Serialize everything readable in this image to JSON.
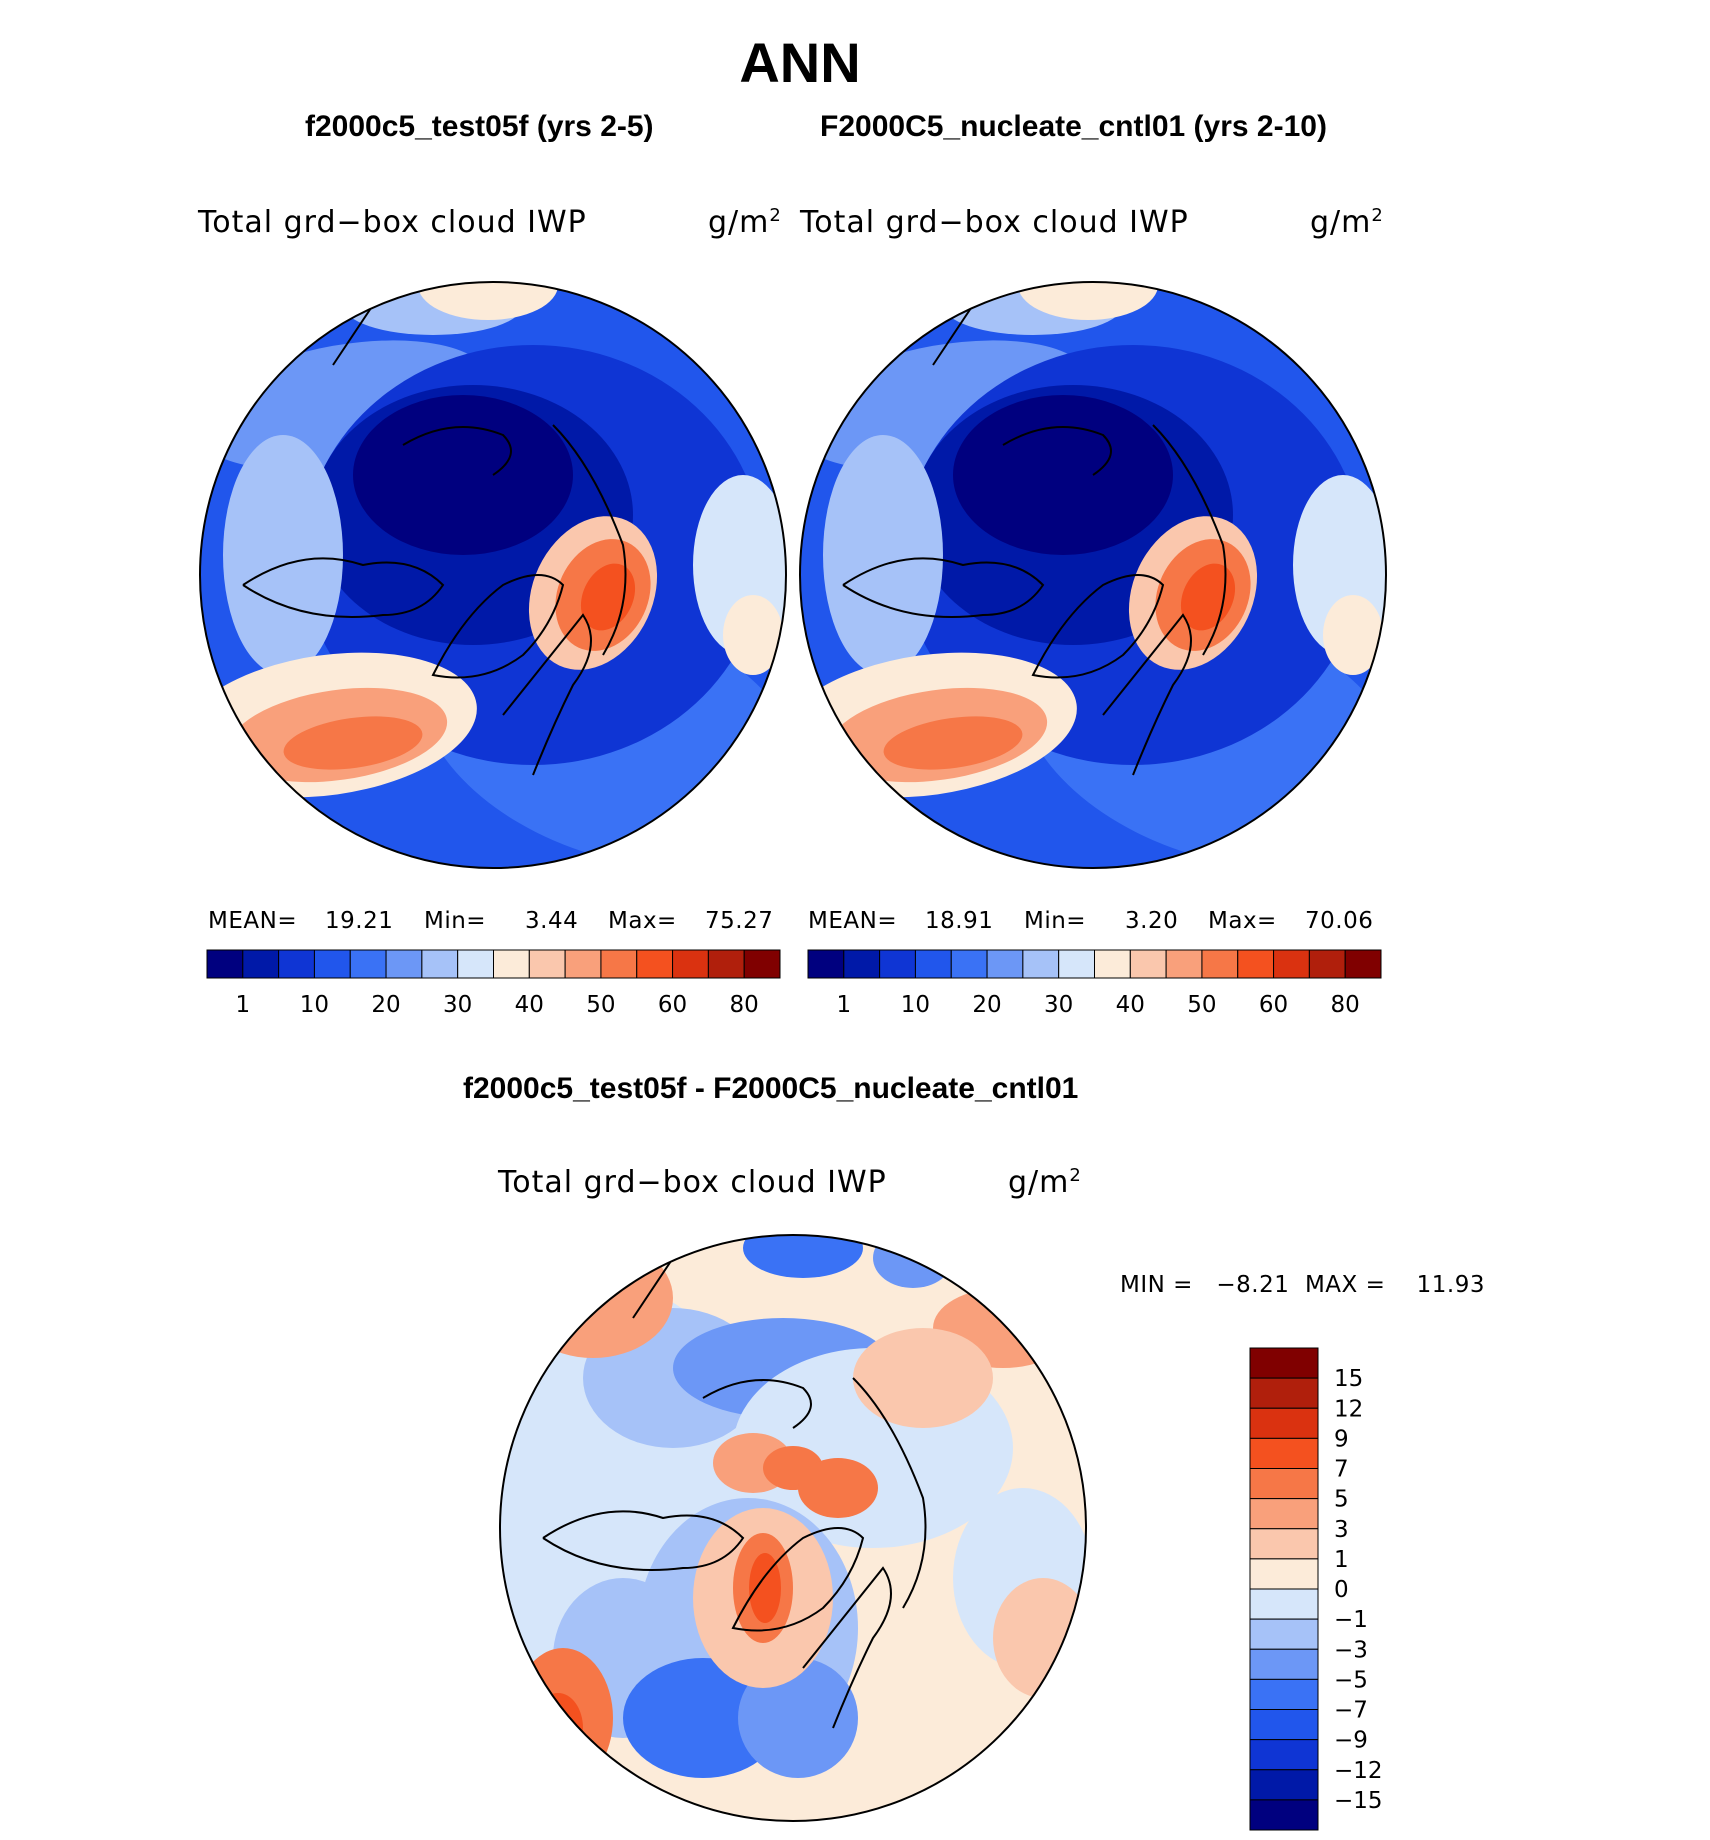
{
  "figure": {
    "title": "ANN",
    "difference_title": "f2000c5_test05f - F2000C5_nucleate_cntl01"
  },
  "panels": [
    {
      "case_title": "f2000c5_test05f (yrs 2-5)",
      "field": "Total grd−box cloud IWP",
      "units": "g/m",
      "units_exp": "2",
      "mean_label": "MEAN=",
      "mean": "19.21",
      "min_label": "Min=",
      "min": "3.44",
      "max_label": "Max=",
      "max": "75.27"
    },
    {
      "case_title": "F2000C5_nucleate_cntl01 (yrs 2-10)",
      "field": "Total grd−box cloud IWP",
      "units": "g/m",
      "units_exp": "2",
      "mean_label": "MEAN=",
      "mean": "18.91",
      "min_label": "Min=",
      "min": "3.20",
      "max_label": "Max=",
      "max": "70.06"
    }
  ],
  "difference": {
    "field": "Total grd−box cloud IWP",
    "units": "g/m",
    "units_exp": "2",
    "minmax_text": "MIN =   −8.21  MAX =    11.93"
  },
  "chart_data": [
    {
      "type": "heatmap",
      "projection": "north-polar-stereographic",
      "title": "f2000c5_test05f (yrs 2-5)",
      "variable": "Total grd-box cloud IWP",
      "units": "g/m^2",
      "stats": {
        "mean": 19.21,
        "min": 3.44,
        "max": 75.27
      },
      "colorbar_ticks": [
        "1",
        "10",
        "20",
        "30",
        "40",
        "50",
        "60",
        "80"
      ],
      "colorbar_colors": [
        "#00007f",
        "#0019a8",
        "#0f35d4",
        "#2156ec",
        "#3a72f5",
        "#6c97f6",
        "#a6c2f8",
        "#d6e6fa",
        "#fcebd9",
        "#fac7ad",
        "#f9a07b",
        "#f67747",
        "#f4511f",
        "#da3210",
        "#b01f0c",
        "#800000"
      ]
    },
    {
      "type": "heatmap",
      "projection": "north-polar-stereographic",
      "title": "F2000C5_nucleate_cntl01 (yrs 2-10)",
      "variable": "Total grd-box cloud IWP",
      "units": "g/m^2",
      "stats": {
        "mean": 18.91,
        "min": 3.2,
        "max": 70.06
      },
      "colorbar_ticks": [
        "1",
        "10",
        "20",
        "30",
        "40",
        "50",
        "60",
        "80"
      ],
      "colorbar_colors": [
        "#00007f",
        "#0019a8",
        "#0f35d4",
        "#2156ec",
        "#3a72f5",
        "#6c97f6",
        "#a6c2f8",
        "#d6e6fa",
        "#fcebd9",
        "#fac7ad",
        "#f9a07b",
        "#f67747",
        "#f4511f",
        "#da3210",
        "#b01f0c",
        "#800000"
      ]
    },
    {
      "type": "heatmap",
      "projection": "north-polar-stereographic",
      "title": "f2000c5_test05f - F2000C5_nucleate_cntl01",
      "variable": "Total grd-box cloud IWP",
      "units": "g/m^2",
      "stats": {
        "min": -8.21,
        "max": 11.93
      },
      "colorbar_ticks": [
        "15",
        "12",
        "9",
        "7",
        "5",
        "3",
        "1",
        "0",
        "−1",
        "−3",
        "−5",
        "−7",
        "−9",
        "−12",
        "−15"
      ],
      "colorbar_colors": [
        "#800000",
        "#b01f0c",
        "#da3210",
        "#f4511f",
        "#f67747",
        "#f9a07b",
        "#fac7ad",
        "#fcebd9",
        "#d6e6fa",
        "#a6c2f8",
        "#6c97f6",
        "#3a72f5",
        "#2156ec",
        "#0f35d4",
        "#0019a8",
        "#00007f"
      ]
    }
  ]
}
